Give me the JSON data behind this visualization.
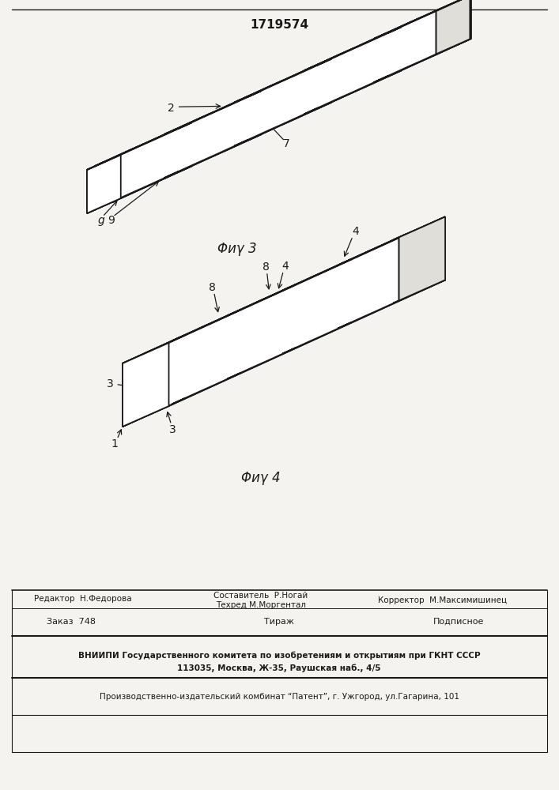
{
  "patent_number": "1719574",
  "bg_color": "#f5f3ef",
  "line_color": "#1a1a1a",
  "footer_editor": "Редактор  Н.Федорова",
  "footer_composer": "Составитель  Р.Ногай",
  "footer_tech": "Техред М.Моргентал",
  "footer_corrector": "Корректор  М.Максимишинец",
  "footer_order": "Заказ  748",
  "footer_tirazh": "Тираж",
  "footer_podp": "Подписное",
  "footer_vniip1": "ВНИИПИ Государственного комитета по изобретениям и открытиям при ГКНТ СССР",
  "footer_vniip2": "113035, Москва, Ж-35, Раушская наб., 4/5",
  "footer_prod": "Производственно-издательский комбинат “Патент”, г. Ужгород, ул.Гагарина, 101",
  "fig3_caption": "Φиγ 3",
  "fig4_caption": "Φиγ 4"
}
